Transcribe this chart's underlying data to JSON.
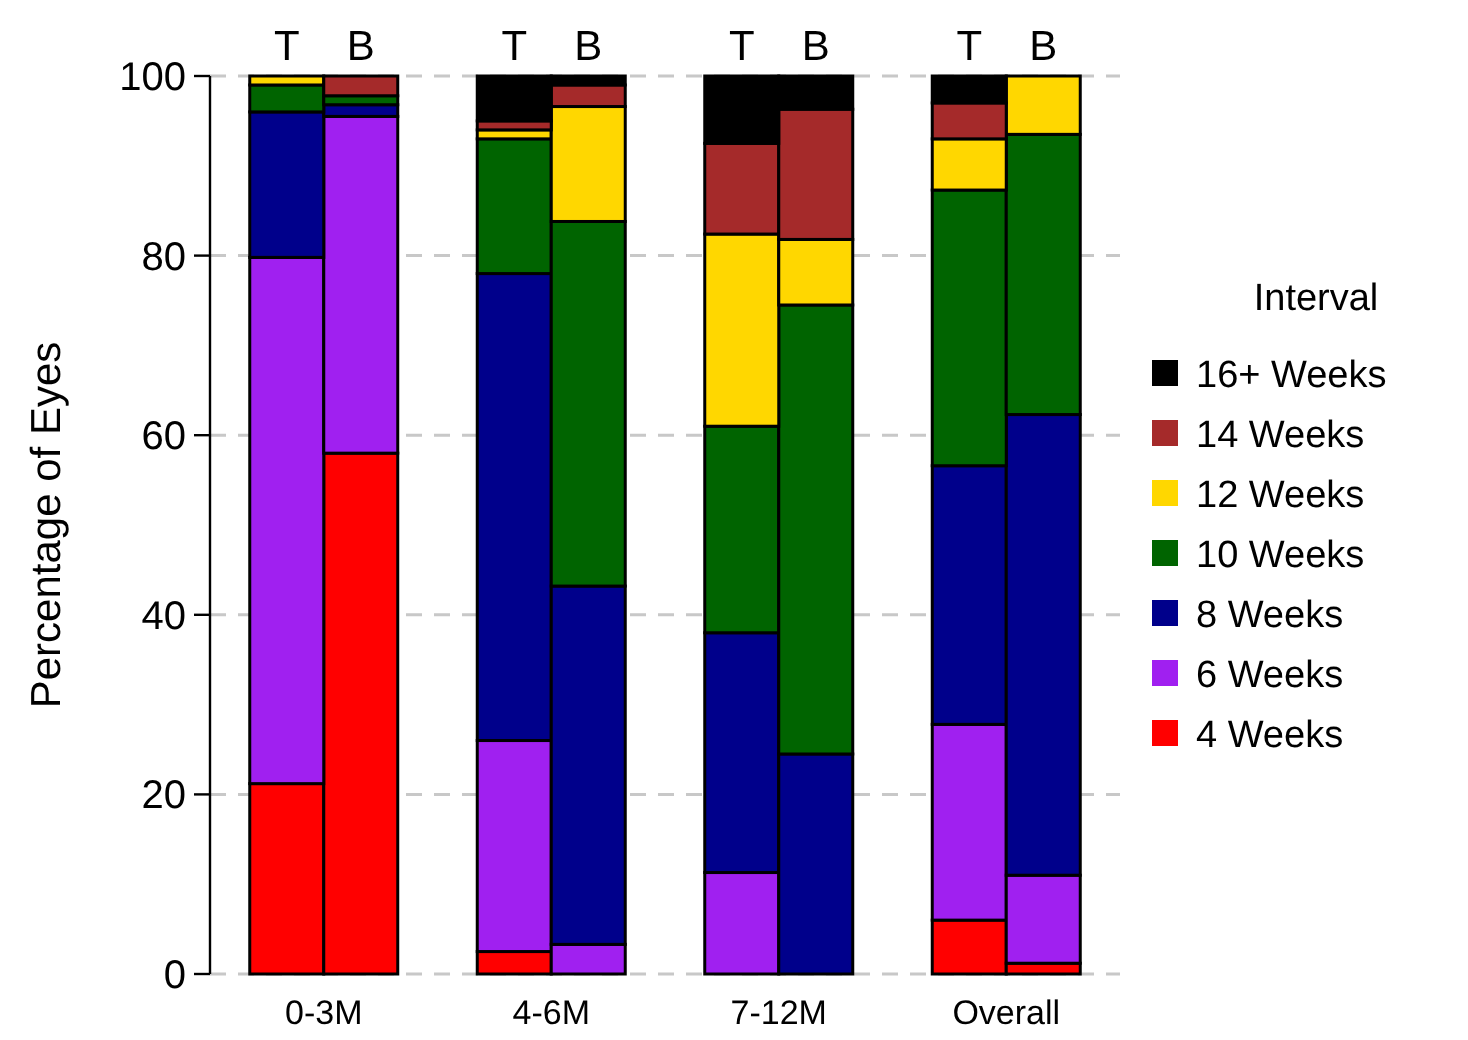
{
  "chart_data": {
    "type": "bar",
    "stacked": true,
    "ylabel": "Percentage of Eyes",
    "legend_title": "Interval",
    "legend": "right",
    "categories": [
      "T",
      "B",
      "T",
      "B",
      "T",
      "B",
      "T",
      "B"
    ],
    "annotations": [
      "0-3M",
      "4-6M",
      "7-12M",
      "Overall"
    ],
    "ylim": [
      0,
      100
    ],
    "yticks": [
      0,
      20,
      40,
      60,
      80,
      100
    ],
    "grid": "y",
    "series": [
      {
        "name": "4 Weeks",
        "color": "#ff0000",
        "values": [
          21.2,
          58,
          2.5,
          0,
          0,
          0,
          6,
          1.2
        ]
      },
      {
        "name": "6 Weeks",
        "color": "#a020f0",
        "values": [
          58.6,
          37.5,
          23.5,
          3.3,
          11.3,
          0,
          21.8,
          9.8
        ]
      },
      {
        "name": "8 Weeks",
        "color": "#00008b",
        "values": [
          16.2,
          1.3,
          52,
          39.9,
          26.7,
          24.5,
          28.8,
          51.3
        ]
      },
      {
        "name": "10 Weeks",
        "color": "#006400",
        "values": [
          3,
          1,
          15,
          40.6,
          23,
          50,
          30.7,
          31.2
        ]
      },
      {
        "name": "12 Weeks",
        "color": "#ffd700",
        "values": [
          1,
          0,
          1,
          12.8,
          21.4,
          7.3,
          5.7,
          6.5
        ]
      },
      {
        "name": "14 Weeks",
        "color": "#a52a2a",
        "values": [
          0,
          2.2,
          1,
          2.4,
          10.1,
          14.5,
          4,
          0
        ]
      },
      {
        "name": "16+ Weeks",
        "color": "#000000",
        "values": [
          0,
          0,
          5,
          1,
          7.5,
          3.7,
          3,
          0
        ]
      }
    ]
  }
}
